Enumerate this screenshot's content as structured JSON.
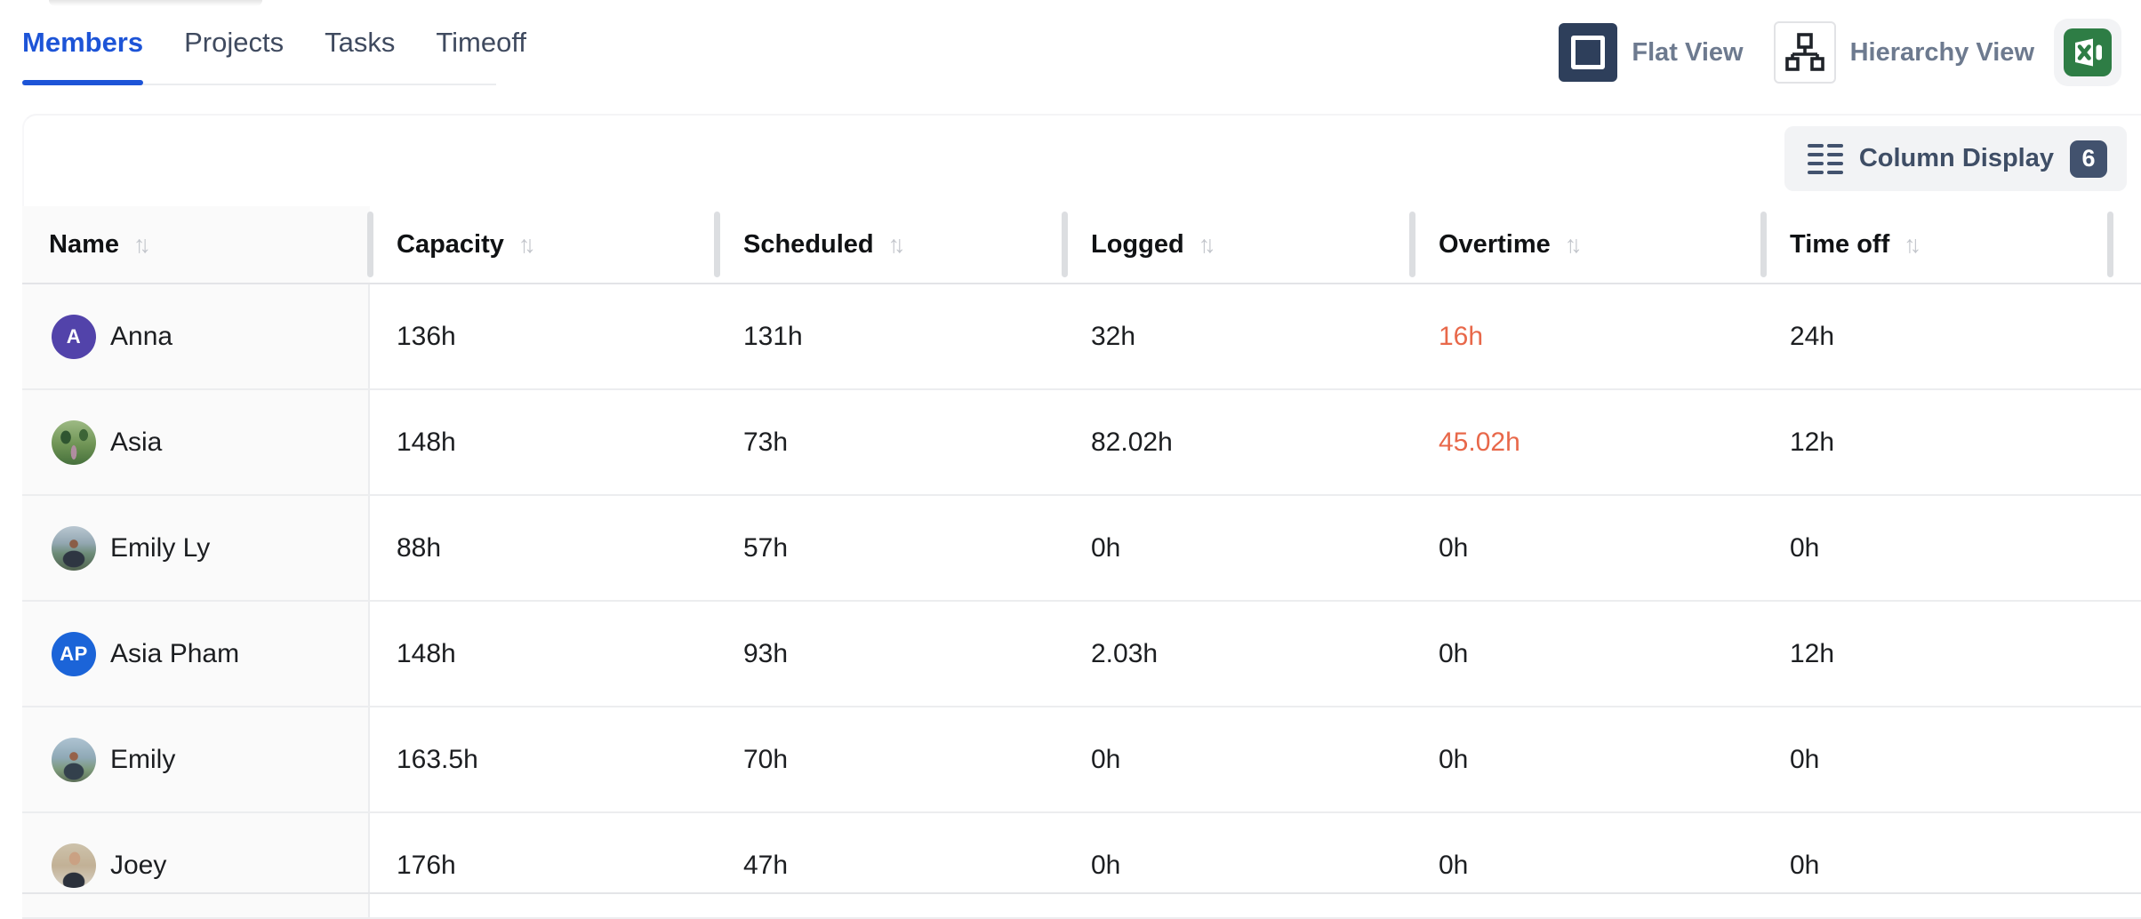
{
  "colors": {
    "accent_blue": "#1d54d7",
    "overtime_alert": "#e8684a",
    "navy_button": "#2e3f5b",
    "excel_green": "#2e7d45",
    "badge_bg": "#42526e"
  },
  "icons": {
    "sort": "↑↓"
  },
  "tabs": {
    "items": [
      {
        "label": "Members",
        "active": true
      },
      {
        "label": "Projects",
        "active": false
      },
      {
        "label": "Tasks",
        "active": false
      },
      {
        "label": "Timeoff",
        "active": false
      }
    ]
  },
  "view_toggle": {
    "flat_label": "Flat View",
    "hierarchy_label": "Hierarchy View"
  },
  "toolbar": {
    "column_display_label": "Column Display",
    "column_count": "6"
  },
  "table": {
    "columns": [
      {
        "key": "name",
        "label": "Name",
        "sortable": true
      },
      {
        "key": "capacity",
        "label": "Capacity",
        "sortable": true
      },
      {
        "key": "scheduled",
        "label": "Scheduled",
        "sortable": true
      },
      {
        "key": "logged",
        "label": "Logged",
        "sortable": true
      },
      {
        "key": "overtime",
        "label": "Overtime",
        "sortable": true
      },
      {
        "key": "timeoff",
        "label": "Time off",
        "sortable": true
      }
    ],
    "rows": [
      {
        "name": "Anna",
        "avatar": {
          "type": "initials",
          "text": "A",
          "color": "#5243aa"
        },
        "capacity": "136h",
        "scheduled": "131h",
        "logged": "32h",
        "overtime": "16h",
        "overtime_alert": true,
        "timeoff": "24h"
      },
      {
        "name": "Asia",
        "avatar": {
          "type": "photo",
          "style": "park"
        },
        "capacity": "148h",
        "scheduled": "73h",
        "logged": "82.02h",
        "overtime": "45.02h",
        "overtime_alert": true,
        "timeoff": "12h"
      },
      {
        "name": "Emily Ly",
        "avatar": {
          "type": "photo",
          "style": "mountain"
        },
        "capacity": "88h",
        "scheduled": "57h",
        "logged": "0h",
        "overtime": "0h",
        "overtime_alert": false,
        "timeoff": "0h"
      },
      {
        "name": "Asia Pham",
        "avatar": {
          "type": "initials",
          "text": "AP",
          "color": "#1b64d8"
        },
        "capacity": "148h",
        "scheduled": "93h",
        "logged": "2.03h",
        "overtime": "0h",
        "overtime_alert": false,
        "timeoff": "12h"
      },
      {
        "name": "Emily",
        "avatar": {
          "type": "photo",
          "style": "mountain2"
        },
        "capacity": "163.5h",
        "scheduled": "70h",
        "logged": "0h",
        "overtime": "0h",
        "overtime_alert": false,
        "timeoff": "0h"
      },
      {
        "name": "Joey",
        "avatar": {
          "type": "photo",
          "style": "portrait"
        },
        "capacity": "176h",
        "scheduled": "47h",
        "logged": "0h",
        "overtime": "0h",
        "overtime_alert": false,
        "timeoff": "0h"
      }
    ]
  }
}
